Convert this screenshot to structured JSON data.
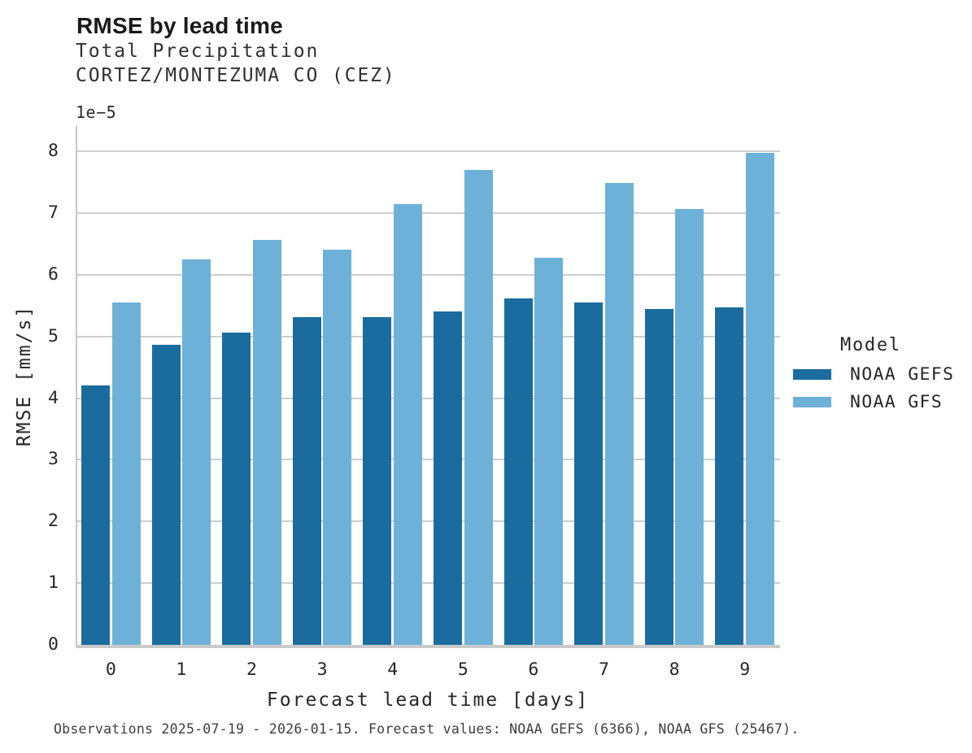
{
  "figure": {
    "title": "RMSE by lead time",
    "subtitle_lines": [
      "Total Precipitation",
      "CORTEZ/MONTEZUMA CO (CEZ)"
    ],
    "caption": "Observations 2025-07-19 - 2026-01-15. Forecast values: NOAA GEFS (6366), NOAA GFS (25467)."
  },
  "chart_data": {
    "type": "bar",
    "title": "RMSE by lead time",
    "subtitle": "Total Precipitation, CORTEZ/MONTEZUMA CO (CEZ)",
    "xlabel": "Forecast lead time [days]",
    "ylabel": "RMSE [mm/s]",
    "y_offset_label": "1e−5",
    "categories": [
      "0",
      "1",
      "2",
      "3",
      "4",
      "5",
      "6",
      "7",
      "8",
      "9"
    ],
    "series": [
      {
        "name": "NOAA GEFS",
        "color": "#1a6c9e",
        "values": [
          4.2,
          4.86,
          5.06,
          5.31,
          5.31,
          5.4,
          5.61,
          5.55,
          5.44,
          5.47
        ]
      },
      {
        "name": "NOAA GFS",
        "color": "#6db1d8",
        "values": [
          5.55,
          6.25,
          6.57,
          6.41,
          7.14,
          7.7,
          6.28,
          7.48,
          7.06,
          7.98
        ]
      }
    ],
    "value_units": "1e-5 mm/s",
    "yticks": [
      0,
      1,
      2,
      3,
      4,
      5,
      6,
      7,
      8
    ],
    "ylim": [
      0,
      8.41
    ],
    "grid": "horizontal",
    "legend_title": "Model",
    "legend_position": "right"
  },
  "colors": {
    "gridline": "#cdcdcd",
    "axis_line": "#c6c6c6",
    "text": "#262626"
  }
}
